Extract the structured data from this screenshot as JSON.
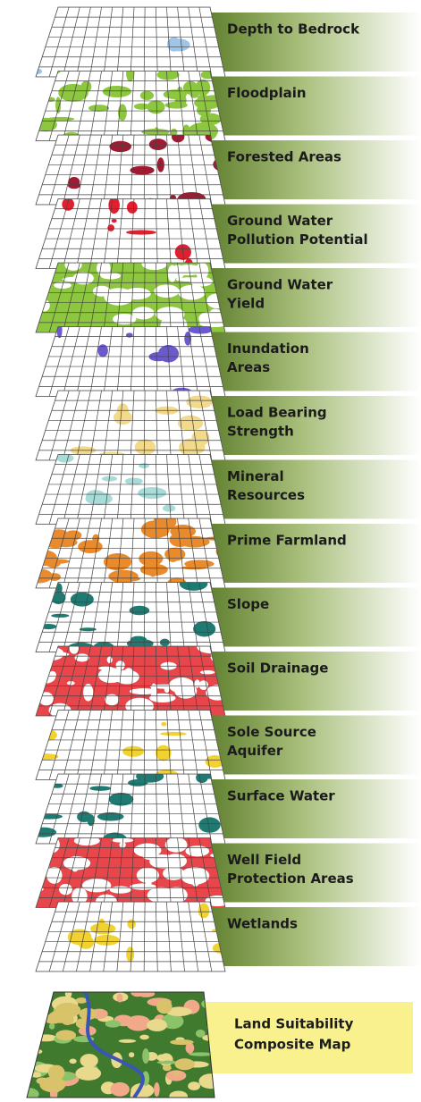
{
  "layers": [
    {
      "lines": [
        "Depth to Bedrock"
      ]
    },
    {
      "lines": [
        "Floodplain"
      ]
    },
    {
      "lines": [
        "Forested Areas"
      ]
    },
    {
      "lines": [
        "Ground Water",
        "Pollution Potential"
      ]
    },
    {
      "lines": [
        "Ground Water",
        "Yield"
      ]
    },
    {
      "lines": [
        "Inundation",
        "Areas"
      ]
    },
    {
      "lines": [
        "Load Bearing",
        "Strength"
      ]
    },
    {
      "lines": [
        "Mineral",
        "Resources"
      ]
    },
    {
      "lines": [
        "Prime Farmland"
      ]
    },
    {
      "lines": [
        "Slope"
      ]
    },
    {
      "lines": [
        "Soil Drainage"
      ]
    },
    {
      "lines": [
        "Sole Source",
        "Aquifer"
      ]
    },
    {
      "lines": [
        "Surface Water"
      ]
    },
    {
      "lines": [
        "Well Field",
        "Protection Areas"
      ]
    },
    {
      "lines": [
        "Wetlands"
      ]
    }
  ],
  "composite": {
    "lines": [
      "Land Suitability",
      "Composite Map"
    ]
  }
}
